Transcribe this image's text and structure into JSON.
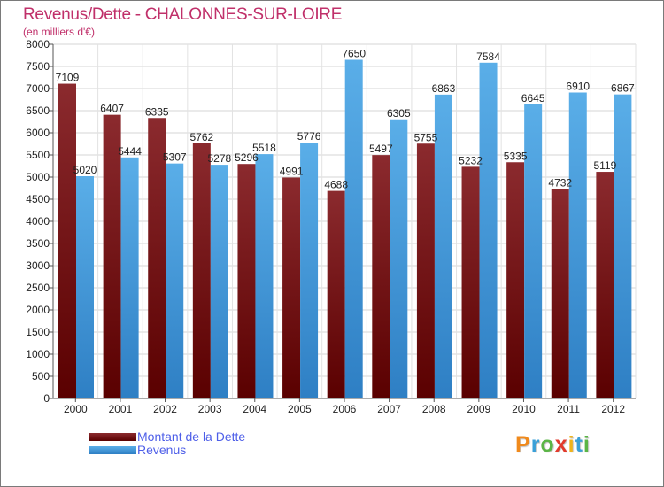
{
  "header": {
    "title": "Revenus/Dette - CHALONNES-SUR-LOIRE",
    "subtitle": "(en milliers d'€)"
  },
  "colors": {
    "title": "#c0306a",
    "dette_top": "#8b2a2e",
    "dette_bottom": "#5a0000",
    "revenus_top": "#5aaee8",
    "revenus_bottom": "#2e7fc4",
    "legend_text": "#4d5ee8"
  },
  "chart_data": {
    "type": "bar",
    "title": "Revenus/Dette - CHALONNES-SUR-LOIRE",
    "ylabel": "(en milliers d'€)",
    "xlabel": "",
    "categories": [
      "2000",
      "2001",
      "2002",
      "2003",
      "2004",
      "2005",
      "2006",
      "2007",
      "2008",
      "2009",
      "2010",
      "2011",
      "2012"
    ],
    "series": [
      {
        "name": "Montant de la Dette",
        "values": [
          7109,
          6407,
          6335,
          5762,
          5296,
          4991,
          4688,
          5497,
          5755,
          5232,
          5335,
          4732,
          5119
        ]
      },
      {
        "name": "Revenus",
        "values": [
          5020,
          5444,
          5307,
          5278,
          5518,
          5776,
          7650,
          6305,
          6863,
          7584,
          6645,
          6910,
          6867
        ]
      }
    ],
    "data_labels": {
      "dette": [
        "7109",
        "6407",
        "6335",
        "5762",
        "5296",
        "4991",
        "4688",
        "5497",
        "5755",
        "5232",
        "5335",
        "4732",
        "5119"
      ],
      "revenus": [
        "5020",
        "5444",
        "5307",
        "5278",
        "5518",
        "5776",
        "7650",
        "6305",
        "6863",
        "7584",
        "6645",
        "6910",
        "6867"
      ]
    },
    "ylim": [
      0,
      8000
    ],
    "yticks": [
      0,
      500,
      1000,
      1500,
      2000,
      2500,
      3000,
      3500,
      4000,
      4500,
      5000,
      5500,
      6000,
      6500,
      7000,
      7500,
      8000
    ],
    "grid": true,
    "legend_position": "bottom-left"
  },
  "legend": {
    "dette_label": "Montant de la Dette",
    "revenus_label": "Revenus"
  },
  "logo": {
    "text": "Proxiti",
    "letters": [
      {
        "ch": "P",
        "color": "#f08a1c"
      },
      {
        "ch": "r",
        "color": "#3aa0d8"
      },
      {
        "ch": "o",
        "color": "#5ab545"
      },
      {
        "ch": "x",
        "color": "#e23a2c"
      },
      {
        "ch": "i",
        "color": "#f0b41c"
      },
      {
        "ch": "t",
        "color": "#3aa0d8"
      },
      {
        "ch": "i",
        "color": "#5ab545"
      }
    ]
  }
}
